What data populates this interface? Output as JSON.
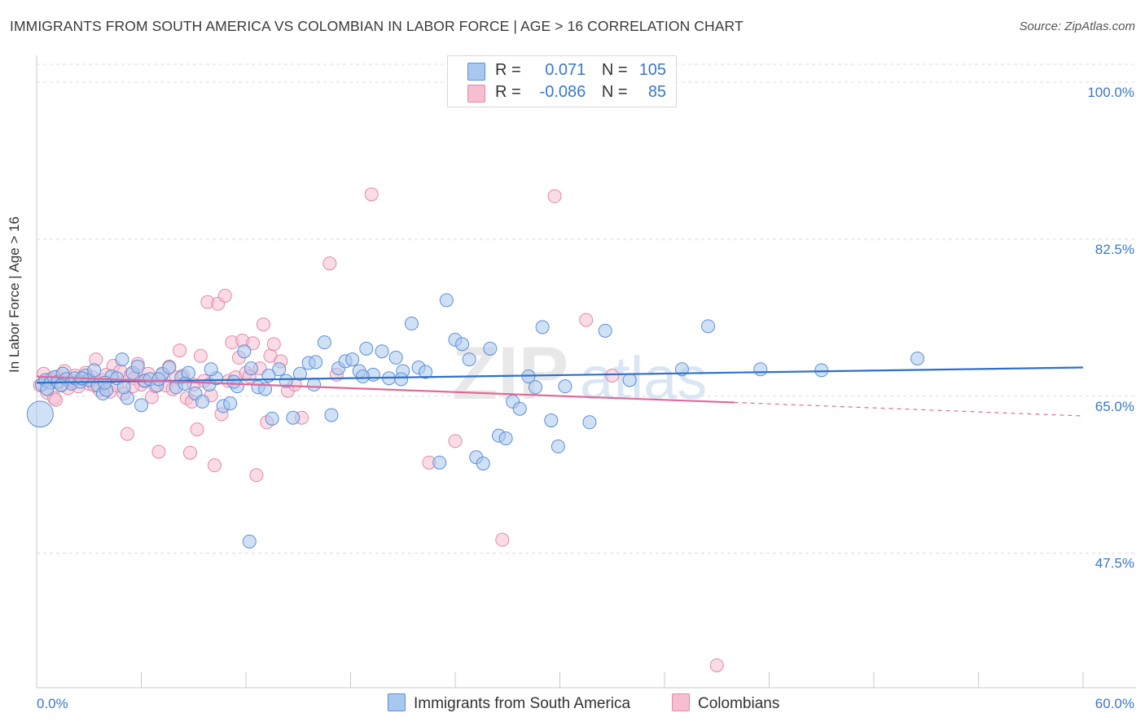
{
  "header": {
    "title": "IMMIGRANTS FROM SOUTH AMERICA VS COLOMBIAN IN LABOR FORCE | AGE > 16 CORRELATION CHART",
    "source": "Source: ZipAtlas.com"
  },
  "legend": {
    "blue": {
      "r_label": "R =",
      "r_value": "0.071",
      "n_label": "N =",
      "n_value": "105"
    },
    "pink": {
      "r_label": "R =",
      "r_value": "-0.086",
      "n_label": "N =",
      "n_value": "85"
    }
  },
  "colors": {
    "blue_fill": "#a9c8ef",
    "blue_stroke": "#5b8fd6",
    "blue_line": "#2e6fc9",
    "pink_fill": "#f6bfd1",
    "pink_stroke": "#e389a8",
    "pink_line": "#e0699a",
    "axis_text": "#3a78c9",
    "grid": "#dcdcdc"
  },
  "chart_data": {
    "type": "scatter",
    "title": "IMMIGRANTS FROM SOUTH AMERICA VS COLOMBIAN IN LABOR FORCE | AGE > 16 CORRELATION CHART",
    "xlabel": "",
    "ylabel": "In Labor Force | Age > 16",
    "xlim": [
      0,
      60
    ],
    "ylim": [
      32.5,
      102
    ],
    "x_tick_labels": [
      "0.0%",
      "60.0%"
    ],
    "y_ticks": [
      47.5,
      65.0,
      82.5,
      100.0
    ],
    "y_tick_labels": [
      "47.5%",
      "65.0%",
      "82.5%",
      "100.0%"
    ],
    "grid": true,
    "legend_position": "top-center",
    "watermark": "ZIPatlas",
    "series": [
      {
        "name": "Immigrants from South America",
        "color": "#a9c8ef",
        "trend": {
          "x": [
            0,
            60
          ],
          "y": [
            66.5,
            68.2
          ]
        },
        "points": [
          [
            0.3,
            66.3
          ],
          [
            0.5,
            66.8
          ],
          [
            0.8,
            66.5
          ],
          [
            1.0,
            67.1
          ],
          [
            1.2,
            66.6
          ],
          [
            1.5,
            67.5
          ],
          [
            1.7,
            66.9
          ],
          [
            2.0,
            66.4
          ],
          [
            2.2,
            67.0
          ],
          [
            2.5,
            66.6
          ],
          [
            2.8,
            67.3
          ],
          [
            3.0,
            66.8
          ],
          [
            3.3,
            67.9
          ],
          [
            3.5,
            66.2
          ],
          [
            3.8,
            65.3
          ],
          [
            4.0,
            65.7
          ],
          [
            4.3,
            67.2
          ],
          [
            4.6,
            67.0
          ],
          [
            4.9,
            69.1
          ],
          [
            5.2,
            64.8
          ],
          [
            5.5,
            67.6
          ],
          [
            5.8,
            68.3
          ],
          [
            6.2,
            66.7
          ],
          [
            6.5,
            66.9
          ],
          [
            6.9,
            66.2
          ],
          [
            7.2,
            67.5
          ],
          [
            7.6,
            68.2
          ],
          [
            8.0,
            66.0
          ],
          [
            8.3,
            67.1
          ],
          [
            8.7,
            67.6
          ],
          [
            9.1,
            65.3
          ],
          [
            9.5,
            64.4
          ],
          [
            9.9,
            66.3
          ],
          [
            10.3,
            67.0
          ],
          [
            10.7,
            63.9
          ],
          [
            11.1,
            64.2
          ],
          [
            11.5,
            66.1
          ],
          [
            11.9,
            70.0
          ],
          [
            12.3,
            68.1
          ],
          [
            12.7,
            66.0
          ],
          [
            12.2,
            48.8
          ],
          [
            13.1,
            65.8
          ],
          [
            13.5,
            62.5
          ],
          [
            13.9,
            68.0
          ],
          [
            14.3,
            66.7
          ],
          [
            14.7,
            62.6
          ],
          [
            15.1,
            67.5
          ],
          [
            15.6,
            68.7
          ],
          [
            16.0,
            68.8
          ],
          [
            16.5,
            71.0
          ],
          [
            16.9,
            62.9
          ],
          [
            17.3,
            68.1
          ],
          [
            17.7,
            68.9
          ],
          [
            18.1,
            69.1
          ],
          [
            18.5,
            67.8
          ],
          [
            18.9,
            70.3
          ],
          [
            19.3,
            67.4
          ],
          [
            19.8,
            70.0
          ],
          [
            20.2,
            67.0
          ],
          [
            20.6,
            69.3
          ],
          [
            21.0,
            67.8
          ],
          [
            21.5,
            73.1
          ],
          [
            21.9,
            68.2
          ],
          [
            22.3,
            67.7
          ],
          [
            23.1,
            57.6
          ],
          [
            23.5,
            75.7
          ],
          [
            24.0,
            71.3
          ],
          [
            24.4,
            70.8
          ],
          [
            24.8,
            69.1
          ],
          [
            25.2,
            58.2
          ],
          [
            25.6,
            57.5
          ],
          [
            26.0,
            70.3
          ],
          [
            26.5,
            60.6
          ],
          [
            26.9,
            60.3
          ],
          [
            27.3,
            64.4
          ],
          [
            27.7,
            63.6
          ],
          [
            28.2,
            67.2
          ],
          [
            28.6,
            66.0
          ],
          [
            29.0,
            72.7
          ],
          [
            29.5,
            62.3
          ],
          [
            29.9,
            59.4
          ],
          [
            30.3,
            66.1
          ],
          [
            31.7,
            62.1
          ],
          [
            32.6,
            72.3
          ],
          [
            34.0,
            66.8
          ],
          [
            37.0,
            68.0
          ],
          [
            38.5,
            72.8
          ],
          [
            41.5,
            68.0
          ],
          [
            45.0,
            67.9
          ],
          [
            50.5,
            69.2
          ],
          [
            0.2,
            63.0
          ],
          [
            0.6,
            65.8
          ],
          [
            1.4,
            66.2
          ],
          [
            2.6,
            67.0
          ],
          [
            3.9,
            66.5
          ],
          [
            5.0,
            66.0
          ],
          [
            6.0,
            64.0
          ],
          [
            7.0,
            66.9
          ],
          [
            8.5,
            66.4
          ],
          [
            10.0,
            68.0
          ],
          [
            11.3,
            66.6
          ],
          [
            13.3,
            67.3
          ],
          [
            15.9,
            66.3
          ],
          [
            18.7,
            67.2
          ],
          [
            20.9,
            66.9
          ]
        ]
      },
      {
        "name": "Colombians",
        "color": "#f6bfd1",
        "trend": {
          "x": [
            0,
            40
          ],
          "y": [
            67.2,
            64.3
          ]
        },
        "trend_dashed": {
          "x": [
            40,
            60
          ],
          "y": [
            64.3,
            62.8
          ]
        },
        "points": [
          [
            0.2,
            66.2
          ],
          [
            0.4,
            67.5
          ],
          [
            0.6,
            65.4
          ],
          [
            0.8,
            66.9
          ],
          [
            1.0,
            64.8
          ],
          [
            1.2,
            67.2
          ],
          [
            1.4,
            66.3
          ],
          [
            1.6,
            67.8
          ],
          [
            1.8,
            65.9
          ],
          [
            2.0,
            66.7
          ],
          [
            2.2,
            67.3
          ],
          [
            2.4,
            66.1
          ],
          [
            2.6,
            66.9
          ],
          [
            2.8,
            67.6
          ],
          [
            3.0,
            66.4
          ],
          [
            3.2,
            67.1
          ],
          [
            3.4,
            69.1
          ],
          [
            3.6,
            65.7
          ],
          [
            3.8,
            66.8
          ],
          [
            4.0,
            67.4
          ],
          [
            4.2,
            65.5
          ],
          [
            4.4,
            68.4
          ],
          [
            4.6,
            66.2
          ],
          [
            4.8,
            67.8
          ],
          [
            5.0,
            65.3
          ],
          [
            5.2,
            60.8
          ],
          [
            5.4,
            67.4
          ],
          [
            5.6,
            67.0
          ],
          [
            5.8,
            68.6
          ],
          [
            6.0,
            66.3
          ],
          [
            6.2,
            66.8
          ],
          [
            6.4,
            67.5
          ],
          [
            6.6,
            64.9
          ],
          [
            6.8,
            66.1
          ],
          [
            7.0,
            58.8
          ],
          [
            7.2,
            67.4
          ],
          [
            7.4,
            66.2
          ],
          [
            7.6,
            68.3
          ],
          [
            7.8,
            65.8
          ],
          [
            8.0,
            67.1
          ],
          [
            8.2,
            70.1
          ],
          [
            8.4,
            67.3
          ],
          [
            8.6,
            64.8
          ],
          [
            8.8,
            58.7
          ],
          [
            9.0,
            66.3
          ],
          [
            9.2,
            61.3
          ],
          [
            9.4,
            69.5
          ],
          [
            9.6,
            66.7
          ],
          [
            9.8,
            75.5
          ],
          [
            10.0,
            65.1
          ],
          [
            10.2,
            57.3
          ],
          [
            10.4,
            75.3
          ],
          [
            10.6,
            63.0
          ],
          [
            10.8,
            76.2
          ],
          [
            11.0,
            66.7
          ],
          [
            11.2,
            71.0
          ],
          [
            11.4,
            67.1
          ],
          [
            11.6,
            69.3
          ],
          [
            11.8,
            71.2
          ],
          [
            12.0,
            67.6
          ],
          [
            12.2,
            67.2
          ],
          [
            12.4,
            70.9
          ],
          [
            12.6,
            56.2
          ],
          [
            12.8,
            68.1
          ],
          [
            13.0,
            73.0
          ],
          [
            13.2,
            62.1
          ],
          [
            13.4,
            69.5
          ],
          [
            13.6,
            70.8
          ],
          [
            14.0,
            68.9
          ],
          [
            14.4,
            65.6
          ],
          [
            14.8,
            66.3
          ],
          [
            15.2,
            62.6
          ],
          [
            16.8,
            79.8
          ],
          [
            17.2,
            67.4
          ],
          [
            19.2,
            87.5
          ],
          [
            22.5,
            57.6
          ],
          [
            24.0,
            60.0
          ],
          [
            26.7,
            49.0
          ],
          [
            31.5,
            73.5
          ],
          [
            33.0,
            67.3
          ],
          [
            39.0,
            35.0
          ],
          [
            1.1,
            64.6
          ],
          [
            3.3,
            66.2
          ],
          [
            5.5,
            66.1
          ],
          [
            8.9,
            64.4
          ]
        ]
      }
    ],
    "extra_outlier_pink": [
      [
        29.7,
        87.3
      ]
    ]
  }
}
